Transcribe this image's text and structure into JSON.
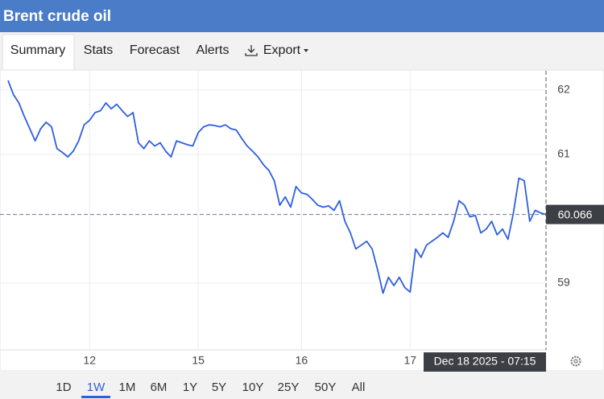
{
  "header": {
    "title": "Brent crude oil"
  },
  "tabs": [
    "Summary",
    "Stats",
    "Forecast",
    "Alerts",
    "Export"
  ],
  "chart_data": {
    "type": "line",
    "categories": [
      null,
      null,
      null,
      null,
      null,
      null,
      null,
      null,
      null,
      null,
      null,
      null,
      null,
      null,
      null,
      "12",
      null,
      null,
      null,
      null,
      null,
      null,
      null,
      null,
      null,
      null,
      null,
      null,
      null,
      null,
      null,
      null,
      null,
      null,
      null,
      "15",
      null,
      null,
      null,
      null,
      null,
      null,
      null,
      null,
      null,
      null,
      null,
      null,
      null,
      null,
      null,
      null,
      null,
      null,
      "16",
      null,
      null,
      null,
      null,
      null,
      null,
      null,
      null,
      null,
      null,
      null,
      null,
      null,
      null,
      null,
      null,
      null,
      null,
      null,
      "17",
      null,
      null,
      null,
      null,
      null,
      null,
      null,
      null,
      null,
      null,
      null,
      null,
      null,
      null,
      null,
      null,
      null,
      null,
      null,
      null,
      null,
      null,
      null,
      null,
      null
    ],
    "series": [
      {
        "color": "#2f5fe0",
        "values": [
          62.15,
          61.93,
          61.8,
          61.59,
          61.4,
          61.21,
          61.4,
          61.5,
          61.43,
          61.09,
          61.03,
          60.96,
          61.05,
          61.21,
          61.46,
          61.53,
          61.65,
          61.68,
          61.8,
          61.71,
          61.78,
          61.68,
          61.59,
          61.65,
          61.18,
          61.09,
          61.21,
          61.13,
          61.18,
          61.05,
          60.96,
          61.21,
          61.18,
          61.15,
          61.13,
          61.34,
          61.43,
          61.46,
          61.45,
          61.43,
          61.46,
          61.4,
          61.38,
          61.25,
          61.13,
          61.05,
          60.96,
          60.84,
          60.75,
          60.59,
          60.21,
          60.34,
          60.18,
          60.5,
          60.4,
          60.38,
          60.3,
          60.21,
          60.18,
          60.2,
          60.13,
          60.28,
          59.96,
          59.78,
          59.53,
          59.59,
          59.65,
          59.53,
          59.21,
          58.84,
          59.09,
          58.96,
          59.09,
          58.93,
          58.86,
          59.53,
          59.4,
          59.59,
          59.65,
          59.71,
          59.78,
          59.71,
          59.96,
          60.28,
          60.21,
          60.03,
          60.05,
          59.78,
          59.84,
          59.96,
          59.75,
          59.84,
          59.68,
          60.09,
          60.63,
          60.59,
          59.96,
          60.13,
          60.09,
          60.066
        ]
      }
    ],
    "ylim": [
      57.96,
      62.3
    ],
    "yticks": [
      59,
      61,
      62
    ],
    "grid": true,
    "crosshair_label": "Dec 18 2025 - 07:15"
  },
  "ranges": [
    "1D",
    "1W",
    "1M",
    "6M",
    "1Y",
    "5Y",
    "10Y",
    "25Y",
    "50Y",
    "All"
  ],
  "active_range": 1
}
